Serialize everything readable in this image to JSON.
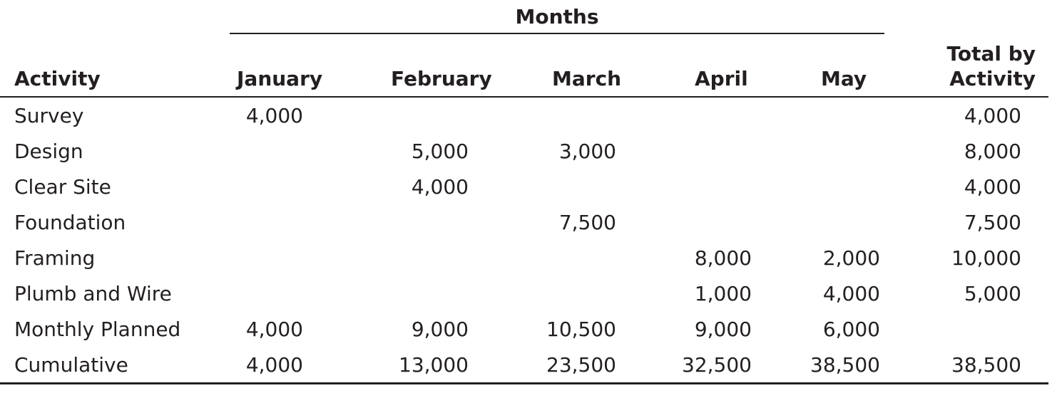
{
  "table": {
    "group_header": "Months",
    "headers": {
      "activity": "Activity",
      "months": [
        "January",
        "February",
        "March",
        "April",
        "May"
      ],
      "total_line1": "Total by",
      "total_line2": "Activity"
    },
    "rows": [
      {
        "activity": "Survey",
        "values": [
          "4,000",
          "",
          "",
          "",
          ""
        ],
        "total": "4,000"
      },
      {
        "activity": "Design",
        "values": [
          "",
          "5,000",
          "3,000",
          "",
          ""
        ],
        "total": "8,000"
      },
      {
        "activity": "Clear Site",
        "values": [
          "",
          "4,000",
          "",
          "",
          ""
        ],
        "total": "4,000"
      },
      {
        "activity": "Foundation",
        "values": [
          "",
          "",
          "7,500",
          "",
          ""
        ],
        "total": "7,500"
      },
      {
        "activity": "Framing",
        "values": [
          "",
          "",
          "",
          "8,000",
          "2,000"
        ],
        "total": "10,000"
      },
      {
        "activity": "Plumb and Wire",
        "values": [
          "",
          "",
          "",
          "1,000",
          "4,000"
        ],
        "total": "5,000"
      },
      {
        "activity": "Monthly Planned",
        "values": [
          "4,000",
          "9,000",
          "10,500",
          "9,000",
          "6,000"
        ],
        "total": ""
      },
      {
        "activity": "Cumulative",
        "values": [
          "4,000",
          "13,000",
          "23,500",
          "32,500",
          "38,500"
        ],
        "total": "38,500"
      }
    ]
  }
}
